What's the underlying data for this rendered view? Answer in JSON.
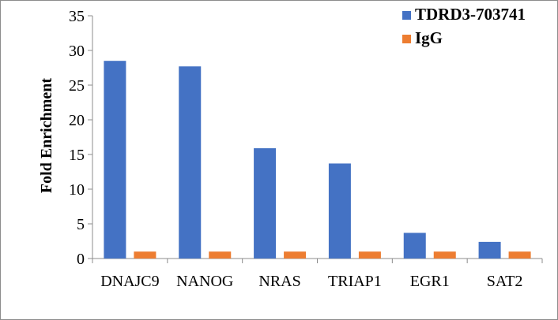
{
  "chart_data": {
    "type": "bar",
    "title": "",
    "xlabel": "",
    "ylabel": "Fold Enrichment",
    "ylim": [
      0,
      35
    ],
    "yticks": [
      0,
      5,
      10,
      15,
      20,
      25,
      30,
      35
    ],
    "grid": false,
    "legend_position": "top-right",
    "categories": [
      "DNAJC9",
      "NANOG",
      "NRAS",
      "TRIAP1",
      "EGR1",
      "SAT2"
    ],
    "series": [
      {
        "name": "TDRD3-703741",
        "color": "#4472C4",
        "values": [
          28.5,
          27.7,
          15.9,
          13.7,
          3.7,
          2.4
        ]
      },
      {
        "name": "IgG",
        "color": "#ED7D31",
        "values": [
          1.0,
          1.0,
          1.0,
          1.0,
          1.0,
          1.0
        ]
      }
    ]
  }
}
